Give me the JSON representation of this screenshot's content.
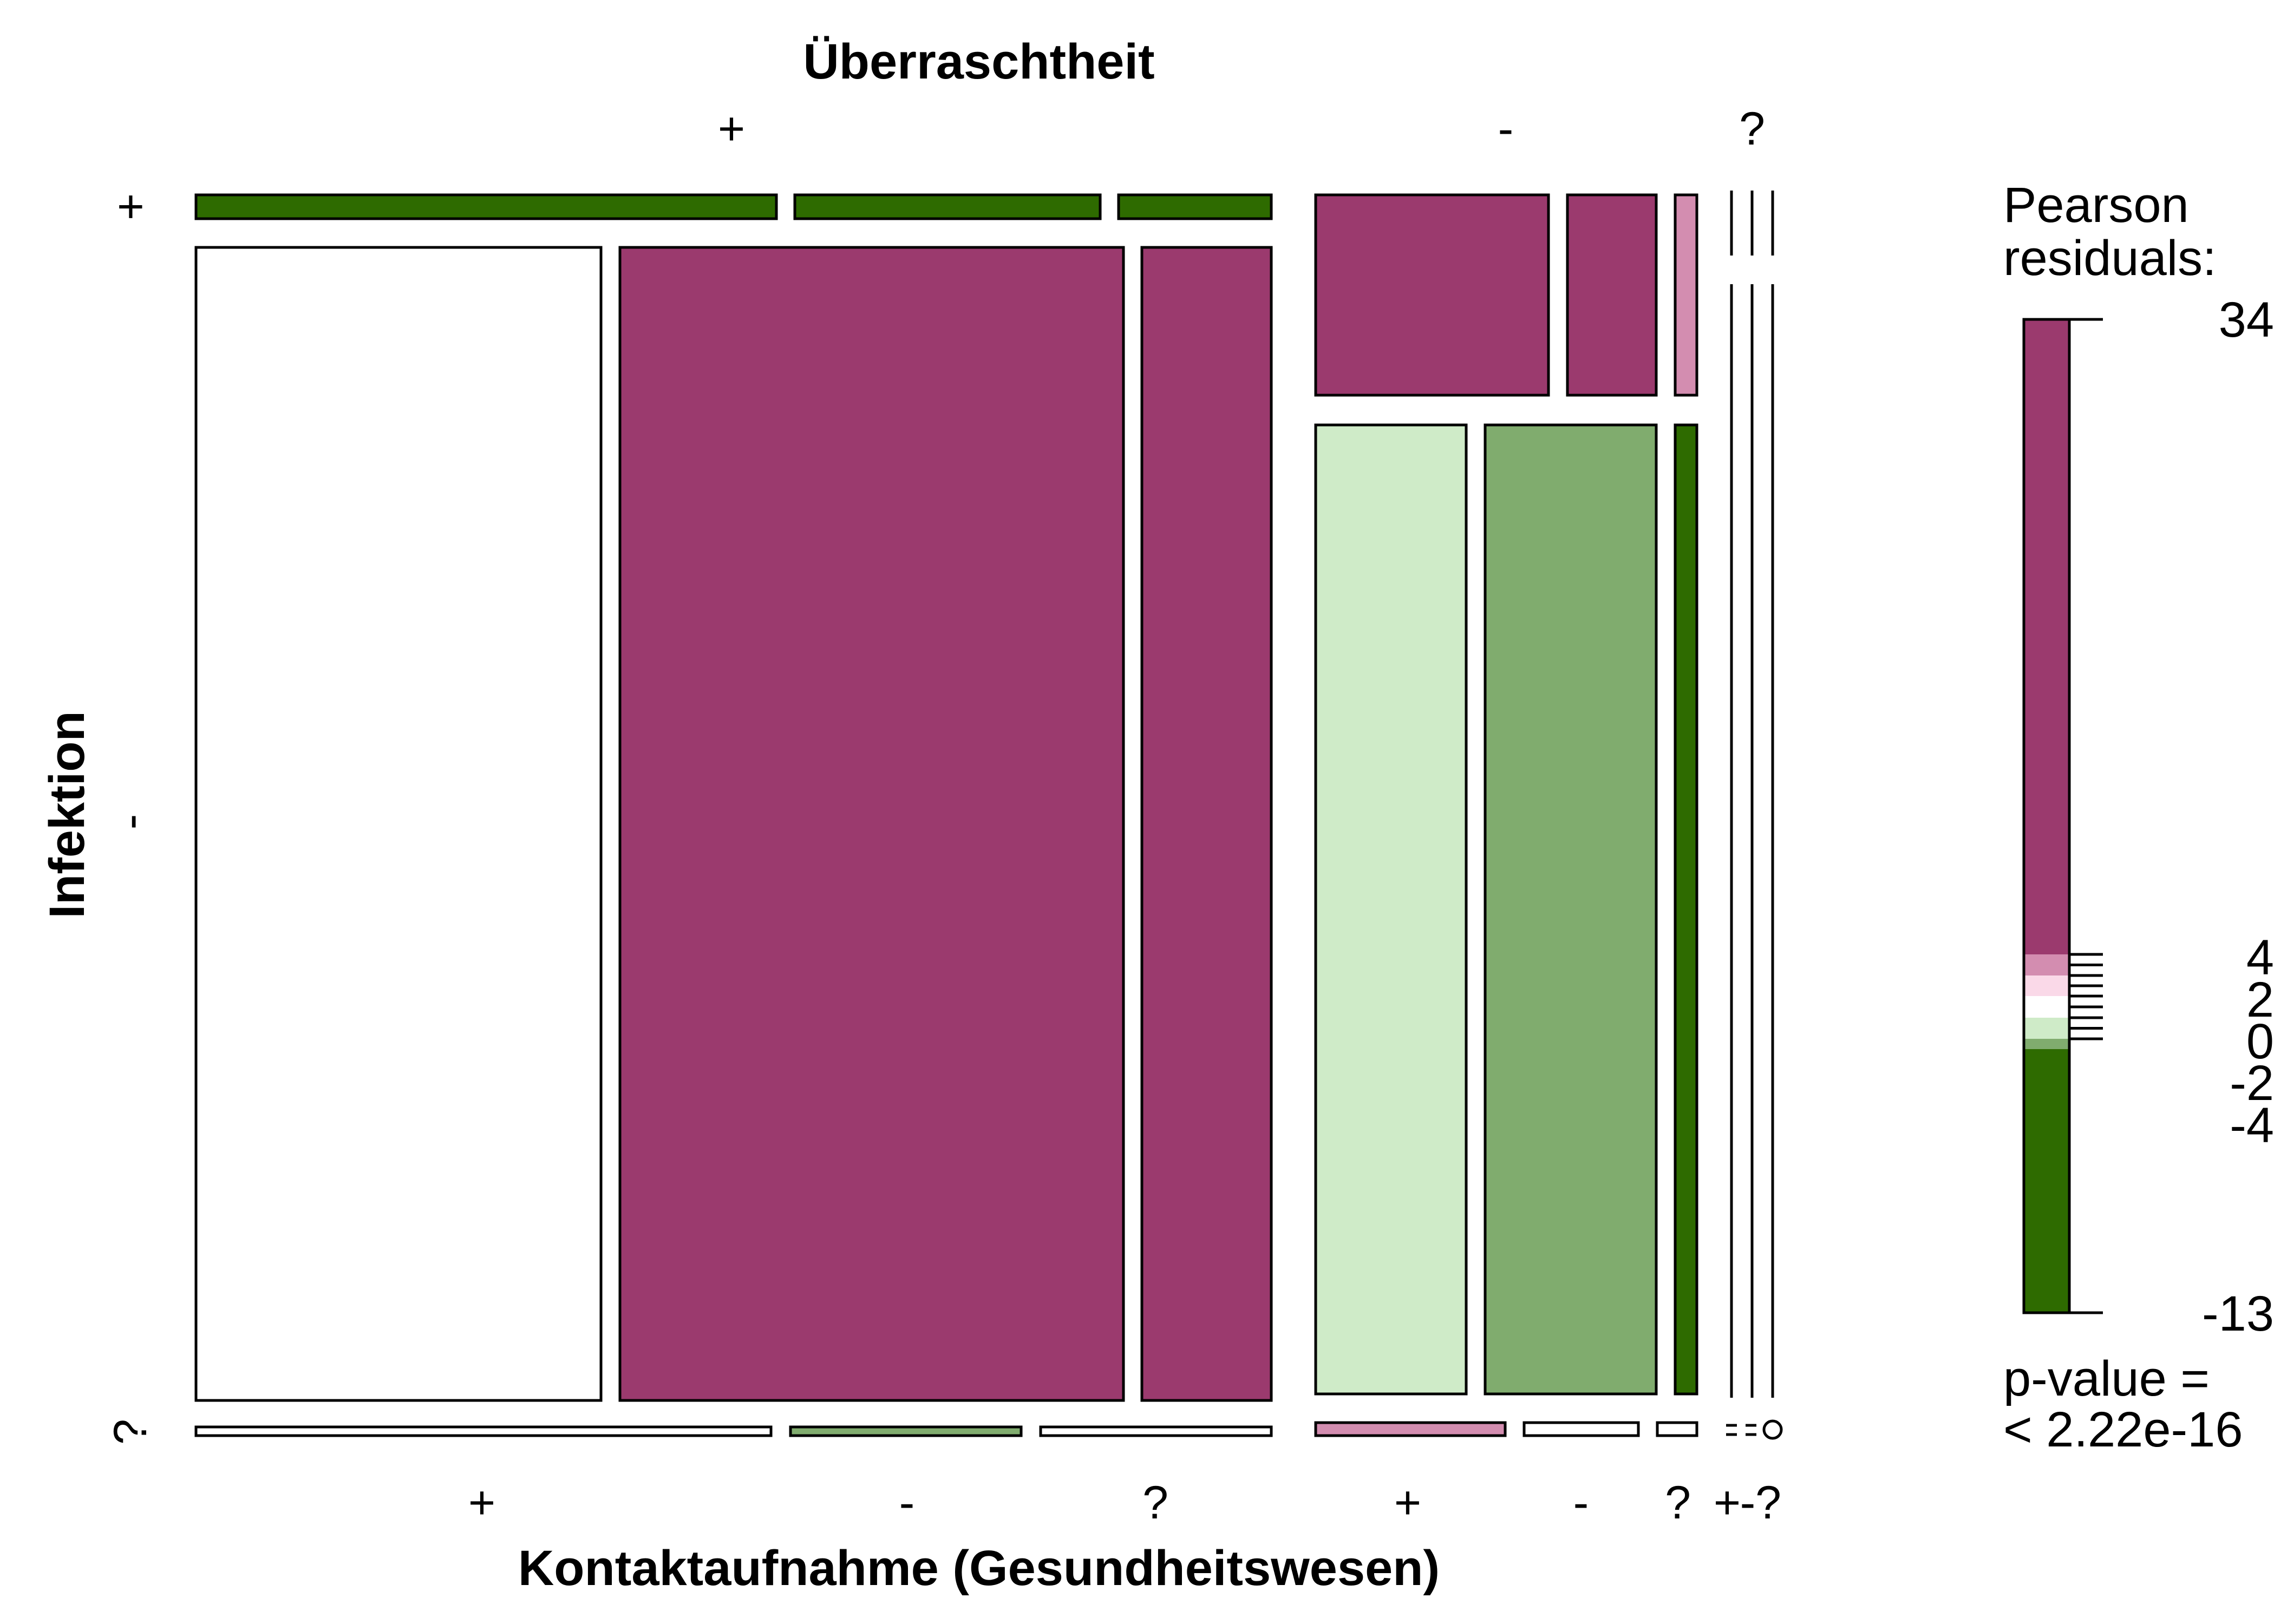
{
  "chart_data": {
    "type": "mosaic",
    "top_variable": "Überraschtheit",
    "bottom_variable": "Kontaktaufnahme (Gesundheitswesen)",
    "left_variable": "Infektion",
    "top_levels": [
      "+",
      "-",
      "?"
    ],
    "bottom_levels": [
      "+",
      "-",
      "?",
      "+",
      "-",
      "?",
      "+",
      "-",
      "?"
    ],
    "left_levels": [
      "+",
      "-",
      "?"
    ],
    "legend": {
      "title_line1": "Pearson",
      "title_line2": "residuals:",
      "max_label": "34",
      "tick_labels": [
        "4",
        "2",
        "0",
        "-2",
        "-4"
      ],
      "min_label": "-13",
      "pvalue_line1": "p-value =",
      "pvalue_line2": "< 2.22e-16",
      "bands": [
        {
          "from": 4,
          "to": 34,
          "color": "#9B3A6E"
        },
        {
          "from": 2,
          "to": 4,
          "color": "#D38DB0"
        },
        {
          "from": 0,
          "to": 2,
          "color": "#FAD9E8"
        },
        {
          "from": -2,
          "to": 0,
          "color": "#FFFFFF"
        },
        {
          "from": -4,
          "to": -2,
          "color": "#CFEBC8"
        },
        {
          "from": -5,
          "to": -4,
          "color": "#80AC6E"
        },
        {
          "from": -13,
          "to": -5,
          "color": "#2E6B00"
        }
      ]
    },
    "colors": {
      "strong_pos": "#9B3A6E",
      "mid_pos": "#D38DB0",
      "neutral": "#FFFFFF",
      "light_neg": "#CFEBC8",
      "mid_neg": "#80AC6E",
      "strong_neg": "#2E6B00"
    },
    "cells": [
      {
        "top": "+",
        "bottom": "+",
        "left": "+",
        "fill": "strong_neg"
      },
      {
        "top": "+",
        "bottom": "-",
        "left": "+",
        "fill": "strong_neg"
      },
      {
        "top": "+",
        "bottom": "?",
        "left": "+",
        "fill": "strong_neg"
      },
      {
        "top": "-",
        "bottom": "+",
        "left": "+",
        "fill": "strong_pos"
      },
      {
        "top": "-",
        "bottom": "-",
        "left": "+",
        "fill": "strong_pos"
      },
      {
        "top": "-",
        "bottom": "?",
        "left": "+",
        "fill": "mid_pos"
      },
      {
        "top": "+",
        "bottom": "+",
        "left": "-",
        "fill": "neutral"
      },
      {
        "top": "+",
        "bottom": "-",
        "left": "-",
        "fill": "strong_pos"
      },
      {
        "top": "+",
        "bottom": "?",
        "left": "-",
        "fill": "strong_pos"
      },
      {
        "top": "-",
        "bottom": "+",
        "left": "-",
        "fill": "light_neg"
      },
      {
        "top": "-",
        "bottom": "-",
        "left": "-",
        "fill": "mid_neg"
      },
      {
        "top": "-",
        "bottom": "?",
        "left": "-",
        "fill": "strong_neg"
      },
      {
        "top": "+",
        "bottom": "+",
        "left": "?",
        "fill": "neutral"
      },
      {
        "top": "+",
        "bottom": "-",
        "left": "?",
        "fill": "mid_neg"
      },
      {
        "top": "+",
        "bottom": "?",
        "left": "?",
        "fill": "neutral"
      },
      {
        "top": "-",
        "bottom": "+",
        "left": "?",
        "fill": "mid_pos"
      },
      {
        "top": "-",
        "bottom": "-",
        "left": "?",
        "fill": "neutral"
      },
      {
        "top": "-",
        "bottom": "?",
        "left": "?",
        "fill": "neutral"
      }
    ]
  }
}
